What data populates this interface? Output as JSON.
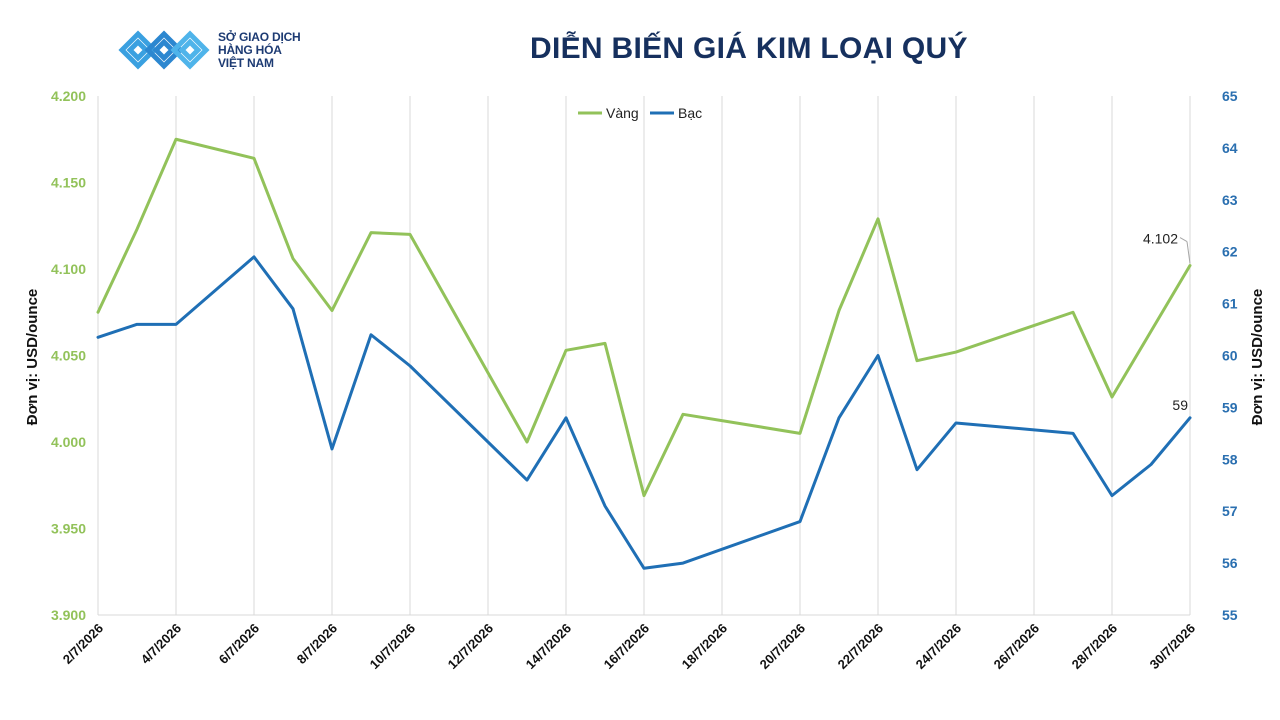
{
  "header": {
    "logo_lines": [
      "SỞ GIAO DỊCH",
      "HÀNG HÓA",
      "VIỆT NAM"
    ],
    "title": "DIỄN BIẾN GIÁ KIM LOẠI QUÝ"
  },
  "chart_data": {
    "type": "line",
    "title": "DIỄN BIẾN GIÁ KIM LOẠI QUÝ",
    "ylabel_left": "Đơn vị: USD/ounce",
    "ylabel_right": "Đơn vị: USD/ounce",
    "ylim_left": [
      3.9,
      4.2
    ],
    "ylim_right": [
      55,
      65
    ],
    "yticks_left": [
      "3.900",
      "3.950",
      "4.000",
      "4.050",
      "4.100",
      "4.150",
      "4.200"
    ],
    "yticks_right": [
      "55",
      "56",
      "57",
      "58",
      "59",
      "60",
      "61",
      "62",
      "63",
      "64",
      "65"
    ],
    "x_tick_labels": [
      "2/7/2026",
      "4/7/2026",
      "6/7/2026",
      "8/7/2026",
      "10/7/2026",
      "12/7/2026",
      "14/7/2026",
      "16/7/2026",
      "18/7/2026",
      "20/7/2026",
      "22/7/2026",
      "24/7/2026",
      "26/7/2026",
      "28/7/2026",
      "30/7/2026"
    ],
    "x_range": [
      "2/7/2026",
      "30/7/2026"
    ],
    "grid": "vertical",
    "legend_position": "top-center",
    "series": [
      {
        "name": "Vàng",
        "axis": "left",
        "color": "#92c25a",
        "points": [
          [
            "2/7/2026",
            4.075
          ],
          [
            "3/7/2026",
            4.123
          ],
          [
            "4/7/2026",
            4.175
          ],
          [
            "6/7/2026",
            4.164
          ],
          [
            "7/7/2026",
            4.106
          ],
          [
            "8/7/2026",
            4.076
          ],
          [
            "9/7/2026",
            4.121
          ],
          [
            "10/7/2026",
            4.12
          ],
          [
            "13/7/2026",
            4.0
          ],
          [
            "14/7/2026",
            4.053
          ],
          [
            "15/7/2026",
            4.057
          ],
          [
            "16/7/2026",
            3.969
          ],
          [
            "17/7/2026",
            4.016
          ],
          [
            "20/7/2026",
            4.005
          ],
          [
            "21/7/2026",
            4.076
          ],
          [
            "22/7/2026",
            4.129
          ],
          [
            "23/7/2026",
            4.047
          ],
          [
            "24/7/2026",
            4.052
          ],
          [
            "27/7/2026",
            4.075
          ],
          [
            "28/7/2026",
            4.026
          ],
          [
            "29/7/2026",
            4.064
          ],
          [
            "30/7/2026",
            4.102
          ]
        ],
        "end_label": "4.102"
      },
      {
        "name": "Bạc",
        "axis": "right",
        "color": "#1f6fb5",
        "points": [
          [
            "2/7/2026",
            60.35
          ],
          [
            "3/7/2026",
            60.6
          ],
          [
            "4/7/2026",
            60.6
          ],
          [
            "6/7/2026",
            61.9
          ],
          [
            "7/7/2026",
            60.9
          ],
          [
            "8/7/2026",
            58.2
          ],
          [
            "9/7/2026",
            60.4
          ],
          [
            "10/7/2026",
            59.8
          ],
          [
            "13/7/2026",
            57.6
          ],
          [
            "14/7/2026",
            58.8
          ],
          [
            "15/7/2026",
            57.1
          ],
          [
            "16/7/2026",
            55.9
          ],
          [
            "17/7/2026",
            56.0
          ],
          [
            "20/7/2026",
            56.8
          ],
          [
            "21/7/2026",
            58.8
          ],
          [
            "22/7/2026",
            60.0
          ],
          [
            "23/7/2026",
            57.8
          ],
          [
            "24/7/2026",
            58.7
          ],
          [
            "27/7/2026",
            58.5
          ],
          [
            "28/7/2026",
            57.3
          ],
          [
            "29/7/2026",
            57.9
          ],
          [
            "30/7/2026",
            58.8
          ]
        ],
        "end_label": "59"
      }
    ]
  }
}
